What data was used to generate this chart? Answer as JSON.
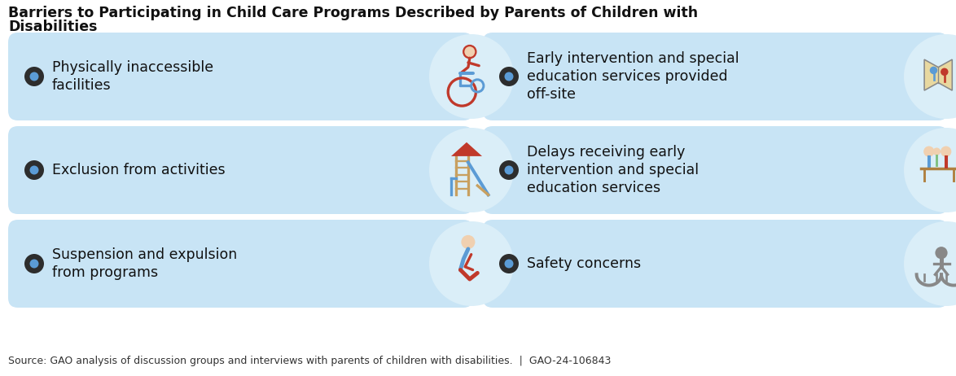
{
  "title_line1": "Barriers to Participating in Child Care Programs Described by Parents of Children with",
  "title_line2": "Disabilities",
  "source_text": "Source: GAO analysis of discussion groups and interviews with parents of children with disabilities.  |  GAO-24-106843",
  "bg_color": "#ffffff",
  "panel_color": "#c8e4f5",
  "icon_circle_color": "#daeef8",
  "bullet_outer": "#2d2d2d",
  "bullet_inner": "#5b9bd5",
  "items_left": [
    "Physically inaccessible\nfacilities",
    "Exclusion from activities",
    "Suspension and expulsion\nfrom programs"
  ],
  "items_right": [
    "Early intervention and special\neducation services provided\noff-site",
    "Delays receiving early\nintervention and special\neducation services",
    "Safety concerns"
  ],
  "title_fontsize": 12.5,
  "item_fontsize": 12.5,
  "source_fontsize": 9
}
